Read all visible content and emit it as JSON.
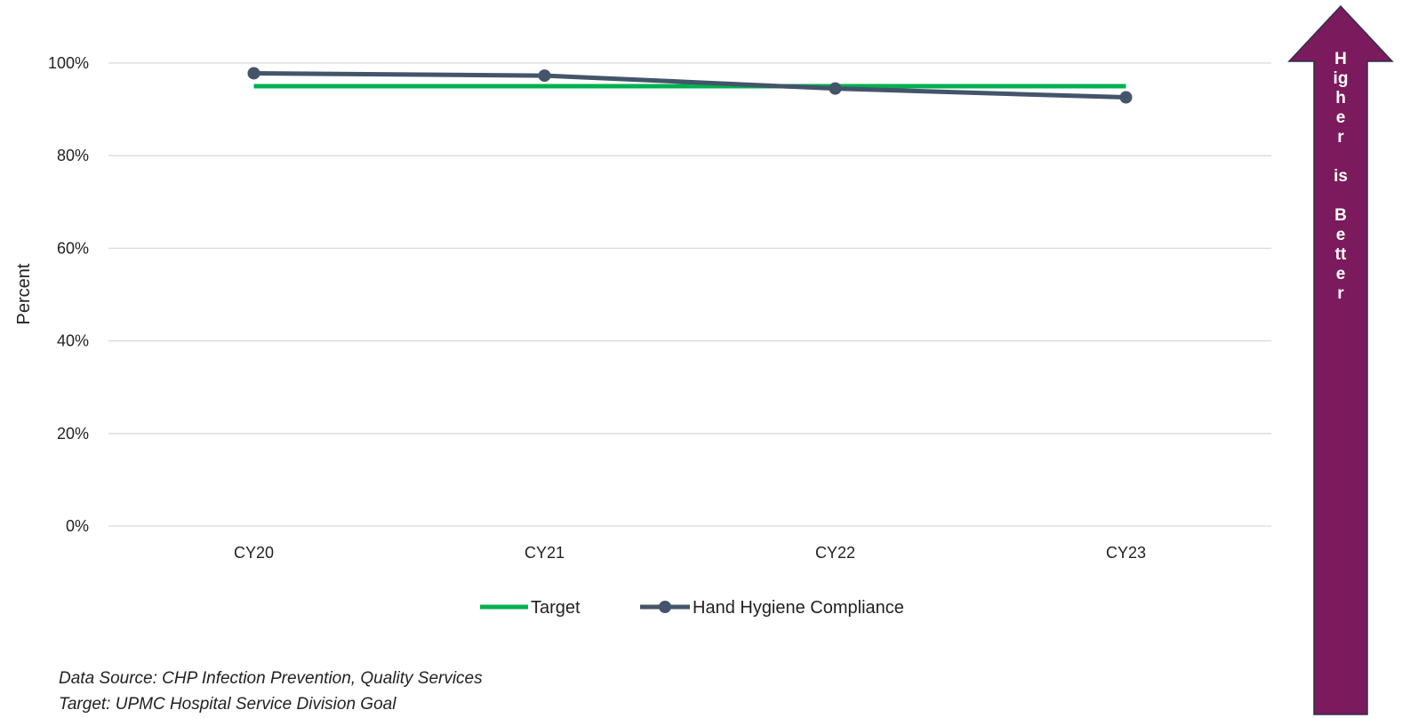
{
  "chart_data": {
    "type": "line",
    "categories": [
      "CY20",
      "CY21",
      "CY22",
      "CY23"
    ],
    "series": [
      {
        "name": "Target",
        "values": [
          95,
          95,
          95,
          95
        ],
        "color": "#00b050",
        "markers": false
      },
      {
        "name": "Hand Hygiene Compliance",
        "values": [
          97.8,
          97.3,
          94.5,
          92.6
        ],
        "color": "#44546a",
        "markers": true
      }
    ],
    "ylabel": "Percent",
    "ylim": [
      0,
      100
    ],
    "yticks": [
      "0%",
      "20%",
      "40%",
      "60%",
      "80%",
      "100%"
    ],
    "ytick_values": [
      0,
      20,
      40,
      60,
      80,
      100
    ],
    "grid": true,
    "legend_position": "bottom"
  },
  "arrow": {
    "letters": [
      "H",
      "ig",
      "h",
      "e",
      "r",
      "",
      "is",
      "",
      "B",
      "e",
      "tt",
      "e",
      "r"
    ],
    "color": "#7b1a5c"
  },
  "footnotes": {
    "source": "Data Source: CHP Infection Prevention, Quality Services",
    "target": "Target: UPMC Hospital Service Division Goal"
  }
}
